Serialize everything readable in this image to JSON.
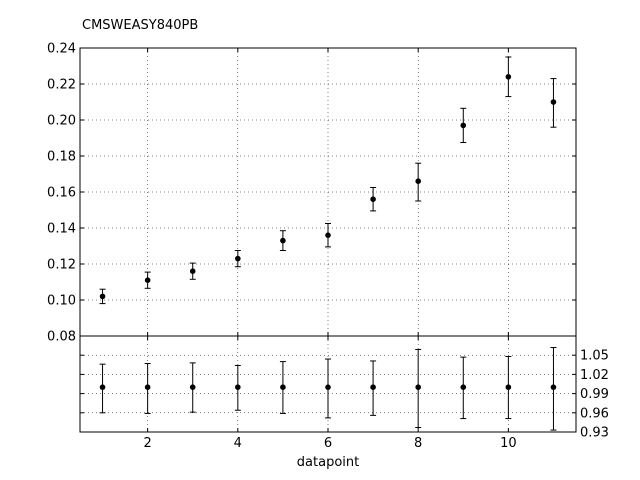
{
  "chart_data": {
    "type": "scatter",
    "title": "CMSWEASY840PB",
    "xlabel": "datapoint",
    "x": [
      1,
      2,
      3,
      4,
      5,
      6,
      7,
      8,
      9,
      10,
      11
    ],
    "xlim": [
      0.5,
      11.5
    ],
    "xticks": [
      2,
      4,
      6,
      8,
      10
    ],
    "main": {
      "ylim": [
        0.08,
        0.24
      ],
      "yticks": [
        "0.08",
        "0.10",
        "0.12",
        "0.14",
        "0.16",
        "0.18",
        "0.20",
        "0.22",
        "0.24"
      ],
      "y": [
        0.102,
        0.111,
        0.116,
        0.123,
        0.133,
        0.136,
        0.156,
        0.166,
        0.197,
        0.224,
        0.21
      ],
      "err_low": [
        0.004,
        0.0045,
        0.0045,
        0.0045,
        0.0055,
        0.0065,
        0.0065,
        0.011,
        0.0095,
        0.011,
        0.014
      ],
      "err_high": [
        0.004,
        0.0045,
        0.0045,
        0.0045,
        0.0055,
        0.0065,
        0.0065,
        0.01,
        0.0095,
        0.011,
        0.013
      ]
    },
    "ratio": {
      "ylim": [
        0.93,
        1.08
      ],
      "yticks": [
        "0.93",
        "0.96",
        "0.99",
        "1.02",
        "1.05"
      ],
      "y": [
        1,
        1,
        1,
        1,
        1,
        1,
        1,
        1,
        1,
        1,
        1
      ],
      "err_low": [
        0.04,
        0.041,
        0.039,
        0.036,
        0.041,
        0.048,
        0.044,
        0.063,
        0.049,
        0.049,
        0.067
      ],
      "err_high": [
        0.036,
        0.037,
        0.038,
        0.034,
        0.04,
        0.044,
        0.041,
        0.059,
        0.047,
        0.048,
        0.062
      ]
    },
    "grid": true
  }
}
